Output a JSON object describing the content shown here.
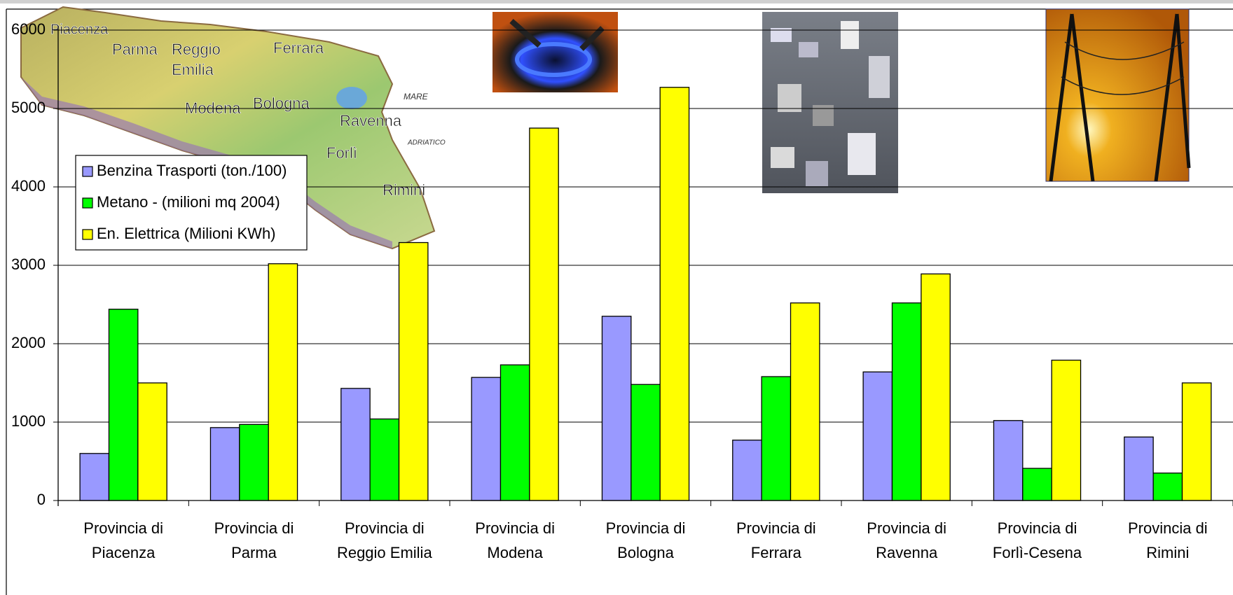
{
  "chart_data": {
    "type": "bar",
    "categories": [
      "Provincia di Piacenza",
      "Provincia di Parma",
      "Provincia di Reggio Emilia",
      "Provincia di Modena",
      "Provincia di Bologna",
      "Provincia di Ferrara",
      "Provincia di Ravenna",
      "Provincia di Forlì-Cesena",
      "Provincia di Rimini"
    ],
    "series": [
      {
        "name": "Benzina Trasporti (ton./100)",
        "color": "#9999ff",
        "values": [
          600,
          930,
          1430,
          1570,
          2350,
          770,
          1640,
          1020,
          810
        ]
      },
      {
        "name": "Metano - (milioni mq 2004)",
        "color": "#00ff00",
        "values": [
          2440,
          970,
          1040,
          1730,
          1480,
          1580,
          2520,
          410,
          350
        ]
      },
      {
        "name": "En. Elettrica (Milioni KWh)",
        "color": "#ffff00",
        "values": [
          1500,
          3020,
          3290,
          4750,
          5270,
          2520,
          2890,
          1790,
          1500
        ]
      }
    ],
    "ylim": [
      0,
      6000
    ],
    "yticks": [
      0,
      1000,
      2000,
      3000,
      4000,
      5000,
      6000
    ],
    "grid": true,
    "legend": "upper left",
    "annotations": [
      "Piacenza",
      "Parma",
      "Reggio",
      "Emilia",
      "Ferrara",
      "Modena",
      "Bologna",
      "Ravenna",
      "Forlì",
      "Rimini",
      "MARE",
      "ADRIATICO"
    ]
  }
}
